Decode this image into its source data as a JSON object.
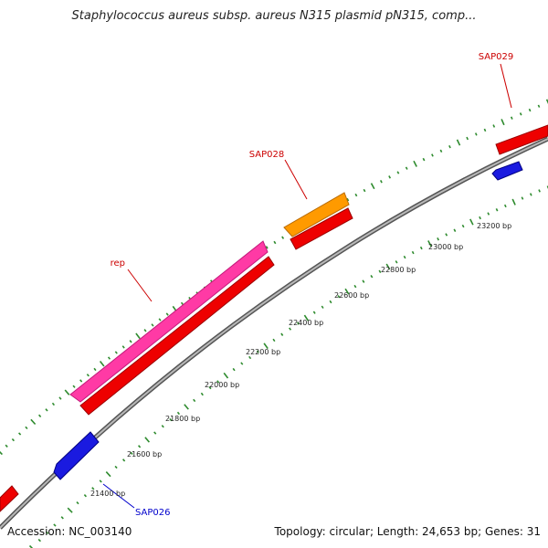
{
  "title": "Staphylococcus aureus subsp. aureus N315 plasmid pN315, comp...",
  "footer": {
    "accession": "Accession: NC_003140",
    "summary": "Topology: circular; Length: 24,653 bp; Genes: 31"
  },
  "colors": {
    "backbone": "#8a8a8a",
    "ticks": "#2e8b2e",
    "gene_forward": "#e00000",
    "gene_reverse": "#1a1ae0",
    "rep": "#ff3aa5",
    "sap028": "#ff9a00",
    "label_red": "#cc0000",
    "label_blue": "#0000cc"
  },
  "scale_labels": [
    "21400 bp",
    "21600 bp",
    "21800 bp",
    "22000 bp",
    "22200 bp",
    "22400 bp",
    "22600 bp",
    "22800 bp",
    "23000 bp",
    "23200 bp"
  ],
  "gene_labels": {
    "rep": "rep",
    "sap028": "SAP028",
    "sap029": "SAP029",
    "sap026": "SAP026"
  }
}
